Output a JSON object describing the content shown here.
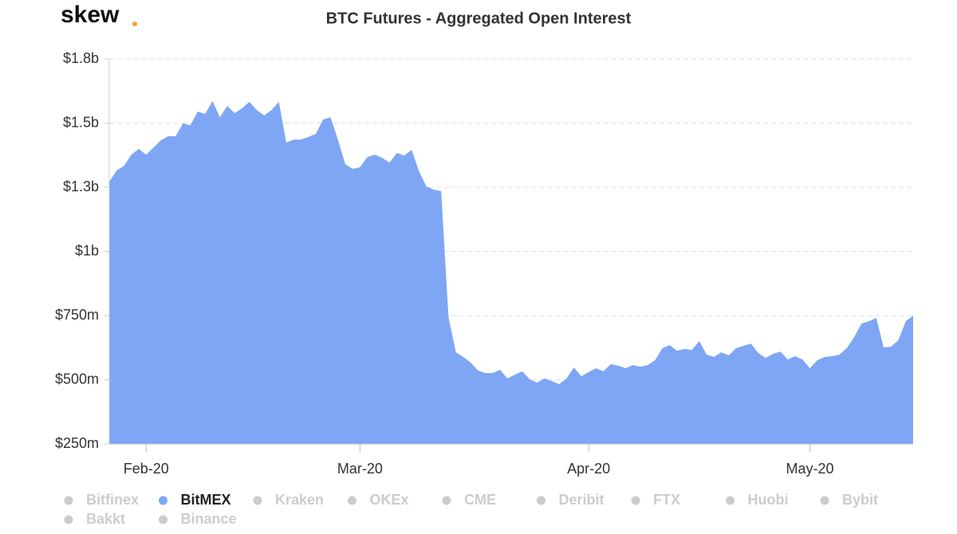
{
  "logo": "skew",
  "chart_data": {
    "type": "area",
    "title": "BTC Futures - Aggregated Open Interest",
    "categories": [
      null,
      null,
      null,
      null,
      null,
      "Feb-20",
      null,
      null,
      null,
      null,
      null,
      null,
      null,
      null,
      null,
      null,
      null,
      null,
      null,
      null,
      null,
      null,
      null,
      null,
      null,
      null,
      null,
      null,
      null,
      null,
      null,
      null,
      null,
      null,
      "Mar-20",
      null,
      null,
      null,
      null,
      null,
      null,
      null,
      null,
      null,
      null,
      null,
      null,
      null,
      null,
      null,
      null,
      null,
      null,
      null,
      null,
      null,
      null,
      null,
      null,
      null,
      null,
      null,
      null,
      null,
      null,
      "Apr-20",
      null,
      null,
      null,
      null,
      null,
      null,
      null,
      null,
      null,
      null,
      null,
      null,
      null,
      null,
      null,
      null,
      null,
      null,
      null,
      null,
      null,
      null,
      null,
      null,
      null,
      null,
      null,
      null,
      null,
      "May-20",
      null,
      null,
      null,
      null,
      null,
      null,
      null,
      null,
      null,
      null,
      null,
      null,
      null,
      null
    ],
    "series": [
      {
        "name": "Bitfinex",
        "color": "#cccccc",
        "visible": false,
        "values": null
      },
      {
        "name": "BitMEX",
        "color": "#7ea6f4",
        "visible": true,
        "values": [
          1272,
          1315,
          1334,
          1377,
          1400,
          1377,
          1405,
          1433,
          1449,
          1449,
          1499,
          1492,
          1545,
          1536,
          1586,
          1523,
          1567,
          1539,
          1558,
          1583,
          1551,
          1530,
          1551,
          1583,
          1424,
          1436,
          1436,
          1446,
          1458,
          1514,
          1523,
          1436,
          1340,
          1322,
          1328,
          1368,
          1377,
          1365,
          1346,
          1384,
          1374,
          1396,
          1312,
          1253,
          1241,
          1235,
          744,
          607,
          589,
          567,
          536,
          526,
          526,
          539,
          505,
          520,
          533,
          502,
          489,
          505,
          495,
          483,
          505,
          548,
          514,
          530,
          545,
          533,
          561,
          555,
          545,
          557,
          551,
          557,
          576,
          623,
          635,
          613,
          620,
          616,
          651,
          598,
          589,
          607,
          595,
          623,
          632,
          641,
          604,
          585,
          601,
          610,
          579,
          592,
          579,
          545,
          576,
          589,
          592,
          598,
          623,
          666,
          719,
          728,
          741,
          626,
          629,
          654,
          728,
          750
        ]
      },
      {
        "name": "Kraken",
        "color": "#cccccc",
        "visible": false,
        "values": null
      },
      {
        "name": "OKEx",
        "color": "#cccccc",
        "visible": false,
        "values": null
      },
      {
        "name": "CME",
        "color": "#cccccc",
        "visible": false,
        "values": null
      },
      {
        "name": "Deribit",
        "color": "#cccccc",
        "visible": false,
        "values": null
      },
      {
        "name": "FTX",
        "color": "#cccccc",
        "visible": false,
        "values": null
      },
      {
        "name": "Huobi",
        "color": "#cccccc",
        "visible": false,
        "values": null
      },
      {
        "name": "Bybit",
        "color": "#cccccc",
        "visible": false,
        "values": null
      },
      {
        "name": "Bakkt",
        "color": "#cccccc",
        "visible": false,
        "values": null
      },
      {
        "name": "Binance",
        "color": "#cccccc",
        "visible": false,
        "values": null
      }
    ],
    "ylim": [
      250,
      1750
    ],
    "yticks": [
      {
        "value": 250,
        "label": "$250m"
      },
      {
        "value": 500,
        "label": "$500m"
      },
      {
        "value": 750,
        "label": "$750m"
      },
      {
        "value": 1000,
        "label": "$1b"
      },
      {
        "value": 1250,
        "label": "$1.3b"
      },
      {
        "value": 1500,
        "label": "$1.5b"
      },
      {
        "value": 1750,
        "label": "$1.8b"
      }
    ],
    "grid": true
  }
}
